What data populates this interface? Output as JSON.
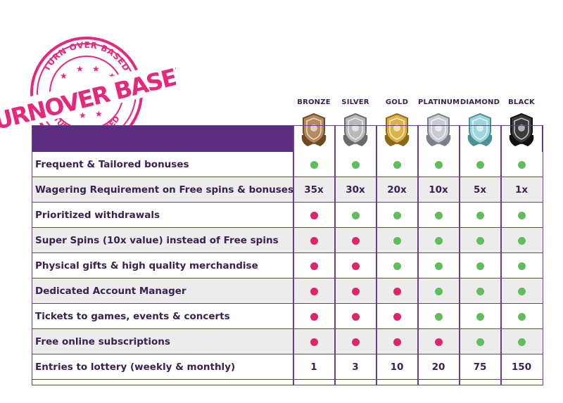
{
  "stamp": {
    "outer_text": "TURN OVER BASED",
    "main_text": "TURNOVER BASED",
    "bottom_text": "TURNOVER BASED",
    "color": "#e6287c"
  },
  "tiers": [
    {
      "name": "BRONZE",
      "color": "#b58a5a",
      "dark": "#6e4a25"
    },
    {
      "name": "SILVER",
      "color": "#b9b9b9",
      "dark": "#6a6a6a"
    },
    {
      "name": "GOLD",
      "color": "#d9b24a",
      "dark": "#8a6a14"
    },
    {
      "name": "PLATINUM",
      "color": "#c8ccd2",
      "dark": "#7a7f88"
    },
    {
      "name": "DIAMOND",
      "color": "#9fd6dc",
      "dark": "#4c8f98"
    },
    {
      "name": "BLACK",
      "color": "#3a3a3a",
      "dark": "#111111"
    }
  ],
  "rows": [
    {
      "label": "Frequent & Tailored bonuses",
      "values": [
        "green",
        "green",
        "green",
        "green",
        "green",
        "green"
      ]
    },
    {
      "label": "Wagering Requirement on Free spins & bonuses",
      "values": [
        "35x",
        "30x",
        "20x",
        "10x",
        "5x",
        "1x"
      ]
    },
    {
      "label": "Prioritized withdrawals",
      "values": [
        "red",
        "green",
        "green",
        "green",
        "green",
        "green"
      ]
    },
    {
      "label": "Super Spins (10x value) instead of Free spins",
      "values": [
        "red",
        "red",
        "green",
        "green",
        "green",
        "green"
      ]
    },
    {
      "label": "Physical gifts & high quality merchandise",
      "values": [
        "red",
        "red",
        "green",
        "green",
        "green",
        "green"
      ]
    },
    {
      "label": "Dedicated Account Manager",
      "values": [
        "red",
        "red",
        "red",
        "green",
        "green",
        "green"
      ]
    },
    {
      "label": "Tickets to games, events & concerts",
      "values": [
        "red",
        "red",
        "red",
        "green",
        "green",
        "green"
      ]
    },
    {
      "label": "Free online subscriptions",
      "values": [
        "red",
        "red",
        "red",
        "red",
        "green",
        "green"
      ]
    },
    {
      "label": "Entries to lottery (weekly & monthly)",
      "values": [
        "1",
        "3",
        "10",
        "20",
        "75",
        "150"
      ]
    }
  ],
  "colors": {
    "purple": "#5a2d80",
    "green_dot": "#5fbd5a",
    "red_dot": "#e0236b",
    "text": "#3a2150"
  }
}
